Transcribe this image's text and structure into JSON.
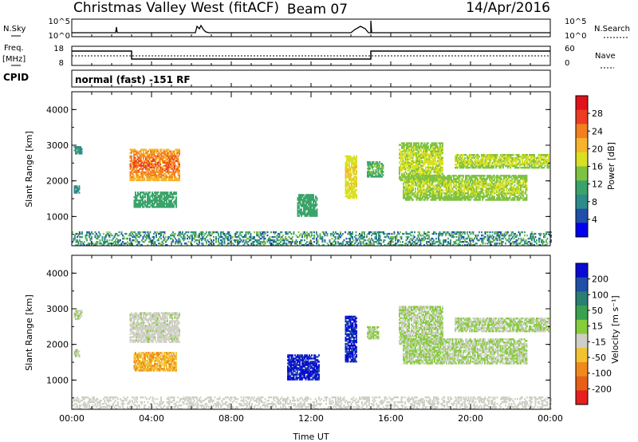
{
  "header": {
    "title": "Christmas Valley West (fitACF)",
    "beam": "Beam 07",
    "date": "14/Apr/2016"
  },
  "strip_sky": {
    "left_label": "N.Sky",
    "right_label": "N.Search",
    "left_ticks": [
      "10^5",
      "10^0"
    ],
    "right_ticks": [
      "10^5",
      "10^0"
    ]
  },
  "strip_freq": {
    "left_label_1": "Freq.",
    "left_label_2": "[MHz]",
    "right_label": "Nave",
    "left_ticks": [
      "18",
      "8"
    ],
    "right_ticks": [
      "60",
      "0"
    ]
  },
  "cpid": {
    "label": "CPID",
    "text": "normal (fast) -151 RF"
  },
  "colors": {
    "power_scale": [
      "#0000ee",
      "#1f4fa8",
      "#2e8b8a",
      "#3aa36a",
      "#7fc241",
      "#d9e022",
      "#f7b32b",
      "#f37f1f",
      "#ee3b24",
      "#e0121b"
    ],
    "velocity_scale": [
      "#0a0ad2",
      "#1f4fa8",
      "#2a7e72",
      "#3aa150",
      "#86cc3c",
      "#cfcfc5",
      "#f2c232",
      "#ef8a1a",
      "#e86018",
      "#e62020"
    ],
    "axis": "#000000",
    "background": "#ffffff"
  },
  "chart_data": [
    {
      "type": "heatmap",
      "name": "power",
      "xlabel": "",
      "ylabel": "Slant Range [km]",
      "xlim": [
        0,
        24
      ],
      "ylim": [
        180,
        4500
      ],
      "xticks": [
        0,
        4,
        8,
        12,
        16,
        20,
        24
      ],
      "yticks": [
        1000,
        2000,
        3000,
        4000
      ],
      "ytick_labels": [
        "1000",
        "2000",
        "3000",
        "4000"
      ],
      "colorbar": {
        "label": "Power [dB]",
        "ticks": [
          "4",
          "8",
          "12",
          "16",
          "20",
          "24",
          "28"
        ],
        "range": [
          0,
          30
        ]
      },
      "regions": [
        {
          "t0": 2.9,
          "t1": 5.4,
          "r0": 2000,
          "r1": 2900,
          "v0": 14,
          "v1": 26
        },
        {
          "t0": 3.1,
          "t1": 5.2,
          "r0": 1250,
          "r1": 1700,
          "v0": 6,
          "v1": 12
        },
        {
          "t0": 0.1,
          "t1": 0.5,
          "r0": 2750,
          "r1": 2950,
          "v0": 6,
          "v1": 10
        },
        {
          "t0": 0.1,
          "t1": 0.4,
          "r0": 1650,
          "r1": 1850,
          "v0": 6,
          "v1": 10
        },
        {
          "t0": 11.3,
          "t1": 12.3,
          "r0": 1000,
          "r1": 1600,
          "v0": 6,
          "v1": 12
        },
        {
          "t0": 13.7,
          "t1": 14.3,
          "r0": 1500,
          "r1": 2700,
          "v0": 10,
          "v1": 20
        },
        {
          "t0": 14.8,
          "t1": 15.6,
          "r0": 2100,
          "r1": 2550,
          "v0": 8,
          "v1": 14
        },
        {
          "t0": 16.4,
          "t1": 18.6,
          "r0": 2000,
          "r1": 3050,
          "v0": 10,
          "v1": 18
        },
        {
          "t0": 16.6,
          "t1": 22.8,
          "r0": 1450,
          "r1": 2150,
          "v0": 8,
          "v1": 18
        },
        {
          "t0": 19.2,
          "t1": 23.9,
          "r0": 2350,
          "r1": 2750,
          "v0": 10,
          "v1": 18
        },
        {
          "t0": 0.0,
          "t1": 24.0,
          "r0": 180,
          "r1": 560,
          "v0": 4,
          "v1": 14
        }
      ]
    },
    {
      "type": "heatmap",
      "name": "velocity",
      "xlabel": "Time UT",
      "ylabel": "Slant Range [km]",
      "xlim": [
        0,
        24
      ],
      "ylim": [
        180,
        4500
      ],
      "xticks": [
        0,
        4,
        8,
        12,
        16,
        20,
        24
      ],
      "xtick_labels": [
        "00:00",
        "04:00",
        "08:00",
        "12:00",
        "16:00",
        "20:00",
        "00:00"
      ],
      "yticks": [
        1000,
        2000,
        3000,
        4000
      ],
      "ytick_labels": [
        "1000",
        "2000",
        "3000",
        "4000"
      ],
      "colorbar": {
        "label": "Velocity [m s⁻¹]",
        "ticks": [
          "200",
          "100",
          "50",
          "15",
          "-15",
          "-50",
          "-100",
          "-200"
        ],
        "range": [
          -250,
          250
        ]
      },
      "regions": [
        {
          "t0": 2.9,
          "t1": 5.4,
          "r0": 2050,
          "r1": 2900,
          "v0": -40,
          "v1": 5
        },
        {
          "t0": 3.1,
          "t1": 5.2,
          "r0": 1250,
          "r1": 1750,
          "v0": -120,
          "v1": -60
        },
        {
          "t0": 0.1,
          "t1": 0.5,
          "r0": 2700,
          "r1": 2950,
          "v0": -10,
          "v1": 10
        },
        {
          "t0": 0.1,
          "t1": 0.4,
          "r0": 1650,
          "r1": 1850,
          "v0": -10,
          "v1": 10
        },
        {
          "t0": 10.8,
          "t1": 12.4,
          "r0": 1000,
          "r1": 1700,
          "v0": 180,
          "v1": 240
        },
        {
          "t0": 13.7,
          "t1": 14.3,
          "r0": 1500,
          "r1": 2800,
          "v0": 180,
          "v1": 240
        },
        {
          "t0": 14.8,
          "t1": 15.4,
          "r0": 2150,
          "r1": 2500,
          "v0": -10,
          "v1": 10
        },
        {
          "t0": 16.4,
          "t1": 18.6,
          "r0": 2000,
          "r1": 3050,
          "v0": -12,
          "v1": 12
        },
        {
          "t0": 16.6,
          "t1": 22.8,
          "r0": 1450,
          "r1": 2150,
          "v0": -12,
          "v1": 12
        },
        {
          "t0": 19.2,
          "t1": 23.9,
          "r0": 2350,
          "r1": 2750,
          "v0": -12,
          "v1": 12
        },
        {
          "t0": 0.0,
          "t1": 24.0,
          "r0": 180,
          "r1": 520,
          "v0": -45,
          "v1": -15
        }
      ]
    }
  ]
}
